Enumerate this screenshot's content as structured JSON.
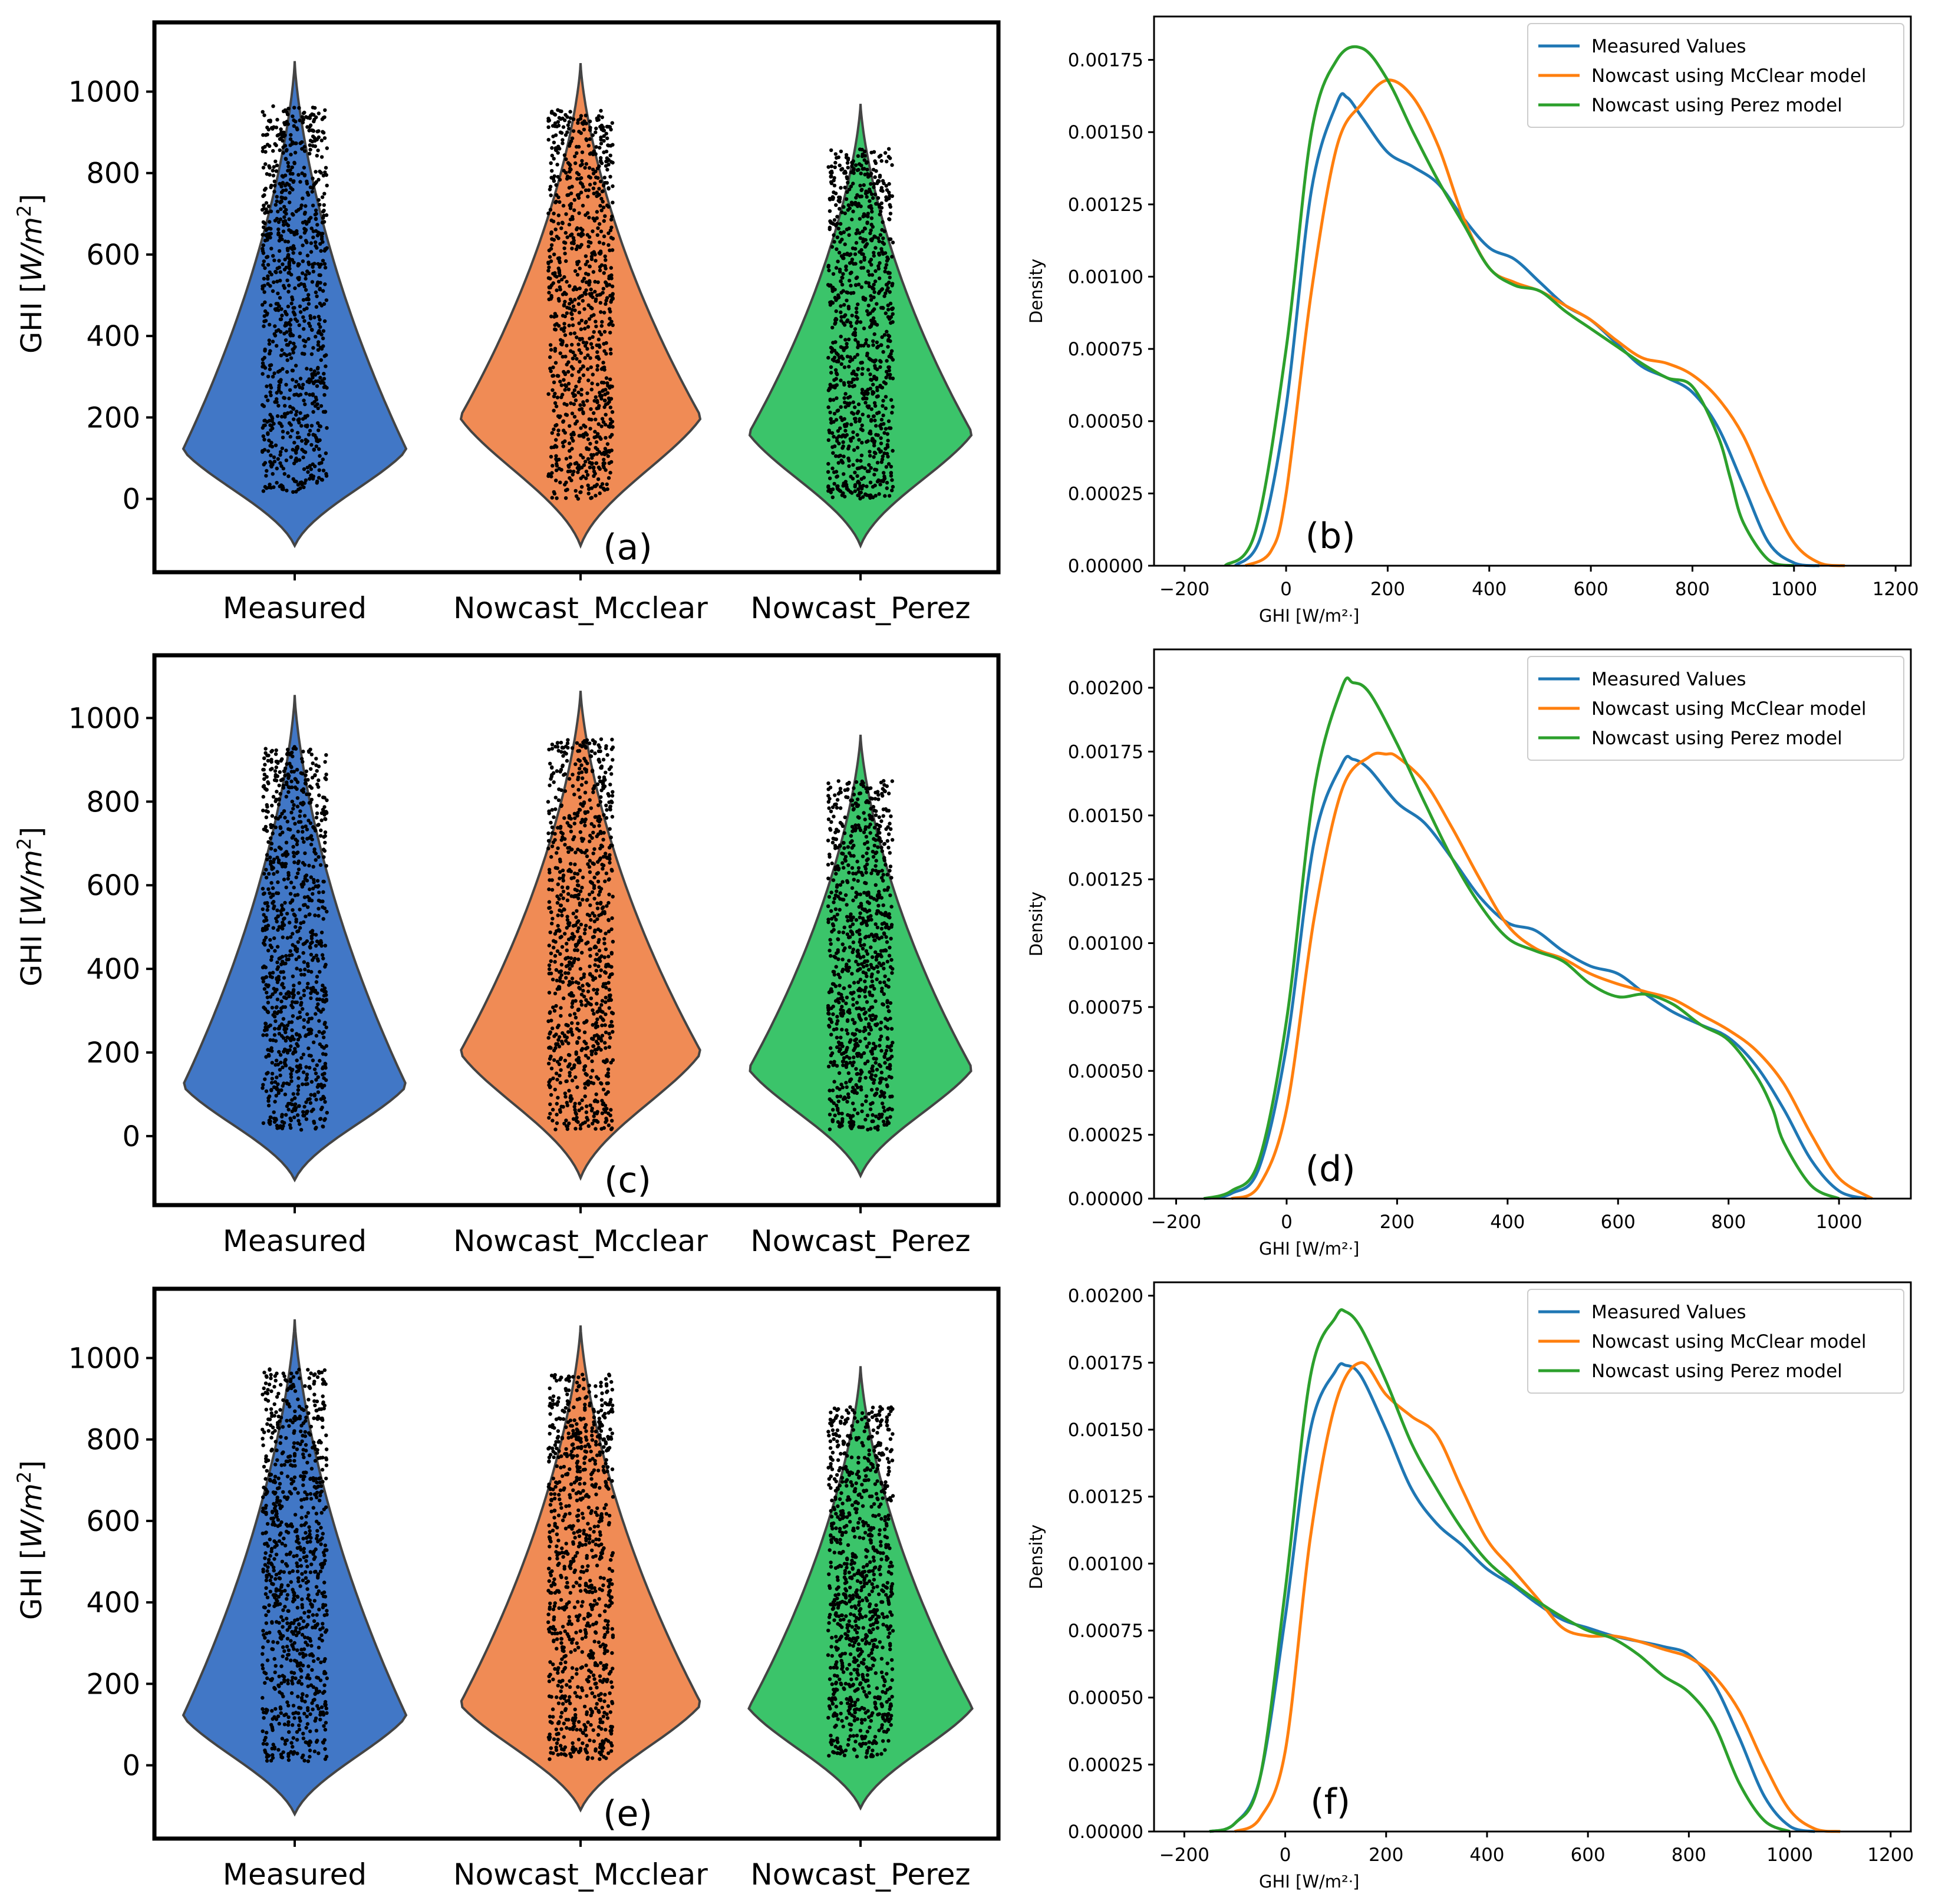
{
  "figure": {
    "colors": {
      "measured": "#4177C6",
      "mcclear": "#F08B55",
      "perez": "#3BC46A",
      "kde_measured": "#1F77B4",
      "kde_mcclear": "#FF7F0E",
      "kde_perez": "#2CA02C",
      "violet_outline": "#444444",
      "axis": "#000000"
    }
  },
  "chart_data": [
    {
      "id": "a",
      "type": "violin",
      "panel_label": "(a)",
      "title": "",
      "ylabel_prefix": "GHI [",
      "ylabel_unit": "W/m",
      "ylabel_sup": "2",
      "ylabel_suffix": "]",
      "ylim": [
        -180,
        1170
      ],
      "yticks": [
        0,
        200,
        400,
        600,
        800,
        1000
      ],
      "categories": [
        "Measured",
        "Nowcast_Mcclear",
        "Nowcast_Perez"
      ],
      "violins": [
        {
          "min": -115,
          "max": 1075,
          "bulge": 120,
          "pts_lo": 15,
          "pts_hi": 965
        },
        {
          "min": -115,
          "max": 1070,
          "bulge": 200,
          "pts_lo": 0,
          "pts_hi": 955
        },
        {
          "min": -115,
          "max": 970,
          "bulge": 160,
          "pts_lo": 0,
          "pts_hi": 860
        }
      ]
    },
    {
      "id": "b",
      "type": "line",
      "panel_label": "(b)",
      "xlabel": "GHI [W/m²ᐧ]",
      "ylabel": "Density",
      "xlim": [
        -260,
        1230
      ],
      "ylim": [
        0,
        0.0019
      ],
      "xticks": [
        -200,
        0,
        200,
        400,
        600,
        800,
        1000,
        1200
      ],
      "yticks": [
        "0.00000",
        "0.00025",
        "0.00050",
        "0.00075",
        "0.00100",
        "0.00125",
        "0.00150",
        "0.00175"
      ],
      "legend_position": "top-right",
      "series": [
        {
          "name": "Measured Values",
          "x": [
            -100,
            -50,
            0,
            50,
            100,
            120,
            150,
            200,
            250,
            300,
            350,
            400,
            450,
            500,
            550,
            600,
            650,
            700,
            750,
            800,
            850,
            900,
            950,
            1000,
            1050
          ],
          "y": [
            0,
            0.0001,
            0.00055,
            0.0013,
            0.0016,
            0.00162,
            0.00155,
            0.00143,
            0.00138,
            0.00132,
            0.0012,
            0.0011,
            0.00106,
            0.00098,
            0.0009,
            0.00085,
            0.00077,
            0.00069,
            0.00065,
            0.0006,
            0.00048,
            0.00028,
            8e-05,
            1e-05,
            0
          ]
        },
        {
          "name": "Nowcast using McClear model",
          "x": [
            -80,
            -30,
            0,
            50,
            100,
            150,
            200,
            250,
            300,
            350,
            400,
            450,
            500,
            550,
            600,
            650,
            700,
            750,
            800,
            850,
            900,
            950,
            1000,
            1050,
            1100
          ],
          "y": [
            0,
            5e-05,
            0.00025,
            0.00095,
            0.00145,
            0.0016,
            0.00168,
            0.00162,
            0.00145,
            0.0012,
            0.00103,
            0.00098,
            0.00095,
            0.0009,
            0.00085,
            0.00078,
            0.00072,
            0.0007,
            0.00066,
            0.00058,
            0.00045,
            0.00025,
            8e-05,
            1e-05,
            0
          ]
        },
        {
          "name": "Nowcast using Perez model",
          "x": [
            -120,
            -60,
            0,
            50,
            100,
            150,
            200,
            250,
            300,
            350,
            400,
            450,
            500,
            550,
            600,
            650,
            700,
            750,
            800,
            850,
            875,
            900,
            950,
            1000
          ],
          "y": [
            0,
            0.00012,
            0.00075,
            0.0015,
            0.00175,
            0.00179,
            0.00168,
            0.0015,
            0.00133,
            0.00118,
            0.00103,
            0.00097,
            0.00095,
            0.00088,
            0.00082,
            0.00076,
            0.0007,
            0.00065,
            0.00062,
            0.00045,
            0.0003,
            0.00015,
            2e-05,
            0
          ]
        }
      ]
    },
    {
      "id": "c",
      "type": "violin",
      "panel_label": "(c)",
      "title": "",
      "ylabel_prefix": "GHI [",
      "ylabel_unit": "W/m",
      "ylabel_sup": "2",
      "ylabel_suffix": "]",
      "ylim": [
        -165,
        1150
      ],
      "yticks": [
        0,
        200,
        400,
        600,
        800,
        1000
      ],
      "categories": [
        "Measured",
        "Nowcast_Mcclear",
        "Nowcast_Perez"
      ],
      "violins": [
        {
          "min": -105,
          "max": 1055,
          "bulge": 120,
          "pts_lo": 15,
          "pts_hi": 935
        },
        {
          "min": -100,
          "max": 1065,
          "bulge": 200,
          "pts_lo": 15,
          "pts_hi": 950
        },
        {
          "min": -95,
          "max": 960,
          "bulge": 160,
          "pts_lo": 15,
          "pts_hi": 850
        }
      ]
    },
    {
      "id": "d",
      "type": "line",
      "panel_label": "(d)",
      "xlabel": "GHI [W/m²ᐧ]",
      "ylabel": "Density",
      "xlim": [
        -240,
        1130
      ],
      "ylim": [
        0,
        0.00215
      ],
      "xticks": [
        -200,
        0,
        200,
        400,
        600,
        800,
        1000
      ],
      "yticks": [
        "0.00000",
        "0.00025",
        "0.00050",
        "0.00075",
        "0.00100",
        "0.00125",
        "0.00150",
        "0.00175",
        "0.00200"
      ],
      "legend_position": "top-right",
      "series": [
        {
          "name": "Measured Values",
          "x": [
            -150,
            -100,
            -50,
            0,
            50,
            100,
            120,
            150,
            200,
            250,
            300,
            350,
            400,
            450,
            500,
            550,
            600,
            650,
            700,
            750,
            800,
            850,
            900,
            950,
            1000,
            1050
          ],
          "y": [
            0,
            2e-05,
            0.00012,
            0.0006,
            0.0014,
            0.0017,
            0.00172,
            0.00168,
            0.00155,
            0.00147,
            0.00133,
            0.00118,
            0.00108,
            0.00105,
            0.00097,
            0.00091,
            0.00088,
            0.0008,
            0.00073,
            0.00068,
            0.00063,
            0.00052,
            0.00035,
            0.00015,
            3e-05,
            0
          ]
        },
        {
          "name": "Nowcast using McClear model",
          "x": [
            -100,
            -50,
            0,
            50,
            100,
            150,
            180,
            200,
            250,
            300,
            350,
            400,
            450,
            500,
            550,
            600,
            650,
            700,
            750,
            800,
            850,
            900,
            950,
            1000,
            1060
          ],
          "y": [
            0,
            5e-05,
            0.00035,
            0.0011,
            0.0016,
            0.00173,
            0.00174,
            0.00173,
            0.00163,
            0.00145,
            0.00125,
            0.00107,
            0.00098,
            0.00094,
            0.00088,
            0.00084,
            0.00081,
            0.00078,
            0.00072,
            0.00066,
            0.00058,
            0.00045,
            0.00025,
            8e-05,
            0
          ]
        },
        {
          "name": "Nowcast using Perez model",
          "x": [
            -150,
            -100,
            -50,
            0,
            50,
            100,
            120,
            150,
            200,
            250,
            300,
            350,
            400,
            450,
            500,
            550,
            600,
            650,
            700,
            750,
            800,
            850,
            880,
            900,
            950,
            1000
          ],
          "y": [
            0,
            3e-05,
            0.00015,
            0.0007,
            0.0016,
            0.002,
            0.00202,
            0.00198,
            0.00178,
            0.00155,
            0.00133,
            0.00115,
            0.00102,
            0.00097,
            0.00093,
            0.00084,
            0.00079,
            0.0008,
            0.00076,
            0.00068,
            0.00062,
            0.00048,
            0.00035,
            0.00022,
            5e-05,
            0
          ]
        }
      ]
    },
    {
      "id": "e",
      "type": "violin",
      "panel_label": "(e)",
      "title": "",
      "ylabel_prefix": "GHI [",
      "ylabel_unit": "W/m",
      "ylabel_sup": "2",
      "ylabel_suffix": "]",
      "ylim": [
        -180,
        1170
      ],
      "yticks": [
        0,
        200,
        400,
        600,
        800,
        1000
      ],
      "categories": [
        "Measured",
        "Nowcast_Mcclear",
        "Nowcast_Perez"
      ],
      "violins": [
        {
          "min": -120,
          "max": 1095,
          "bulge": 120,
          "pts_lo": 10,
          "pts_hi": 975
        },
        {
          "min": -110,
          "max": 1080,
          "bulge": 150,
          "pts_lo": 15,
          "pts_hi": 960
        },
        {
          "min": -105,
          "max": 980,
          "bulge": 140,
          "pts_lo": 15,
          "pts_hi": 880
        }
      ]
    },
    {
      "id": "f",
      "type": "line",
      "panel_label": "(f)",
      "xlabel": "GHI [W/m²ᐧ]",
      "ylabel": "Density",
      "xlim": [
        -260,
        1240
      ],
      "ylim": [
        0,
        0.00205
      ],
      "xticks": [
        -200,
        0,
        200,
        400,
        600,
        800,
        1000,
        1200
      ],
      "yticks": [
        "0.00000",
        "0.00025",
        "0.00050",
        "0.00075",
        "0.00100",
        "0.00125",
        "0.00150",
        "0.00175",
        "0.00200"
      ],
      "legend_position": "top-right",
      "series": [
        {
          "name": "Measured Values",
          "x": [
            -150,
            -100,
            -50,
            0,
            50,
            100,
            120,
            150,
            200,
            250,
            300,
            350,
            400,
            450,
            500,
            550,
            600,
            650,
            700,
            750,
            800,
            850,
            900,
            950,
            1000,
            1050
          ],
          "y": [
            0,
            3e-05,
            0.0002,
            0.0008,
            0.0015,
            0.00172,
            0.00174,
            0.0017,
            0.0015,
            0.00128,
            0.00115,
            0.00107,
            0.00098,
            0.00092,
            0.00085,
            0.00079,
            0.00076,
            0.00073,
            0.00071,
            0.00069,
            0.00066,
            0.00055,
            0.00035,
            0.00013,
            2e-05,
            0
          ]
        },
        {
          "name": "Nowcast using McClear model",
          "x": [
            -100,
            -50,
            0,
            50,
            100,
            150,
            200,
            250,
            300,
            350,
            400,
            450,
            500,
            550,
            600,
            650,
            700,
            750,
            800,
            850,
            900,
            950,
            1000,
            1050,
            1100
          ],
          "y": [
            0,
            5e-05,
            0.0003,
            0.0011,
            0.0016,
            0.00175,
            0.00163,
            0.00155,
            0.00148,
            0.00128,
            0.00109,
            0.00098,
            0.00087,
            0.00076,
            0.00073,
            0.00073,
            0.00071,
            0.00068,
            0.00065,
            0.00058,
            0.00045,
            0.00025,
            8e-05,
            1e-05,
            0
          ]
        },
        {
          "name": "Nowcast using Perez model",
          "x": [
            -150,
            -100,
            -50,
            0,
            50,
            100,
            120,
            150,
            200,
            250,
            300,
            350,
            400,
            450,
            500,
            550,
            600,
            650,
            700,
            750,
            800,
            850,
            900,
            950,
            1000
          ],
          "y": [
            0,
            3e-05,
            0.0002,
            0.0009,
            0.0017,
            0.00192,
            0.00194,
            0.00188,
            0.00168,
            0.00145,
            0.00128,
            0.00113,
            0.00101,
            0.00093,
            0.00086,
            0.0008,
            0.00075,
            0.00072,
            0.00066,
            0.00058,
            0.00052,
            0.0004,
            0.00018,
            4e-05,
            0
          ]
        }
      ]
    }
  ]
}
